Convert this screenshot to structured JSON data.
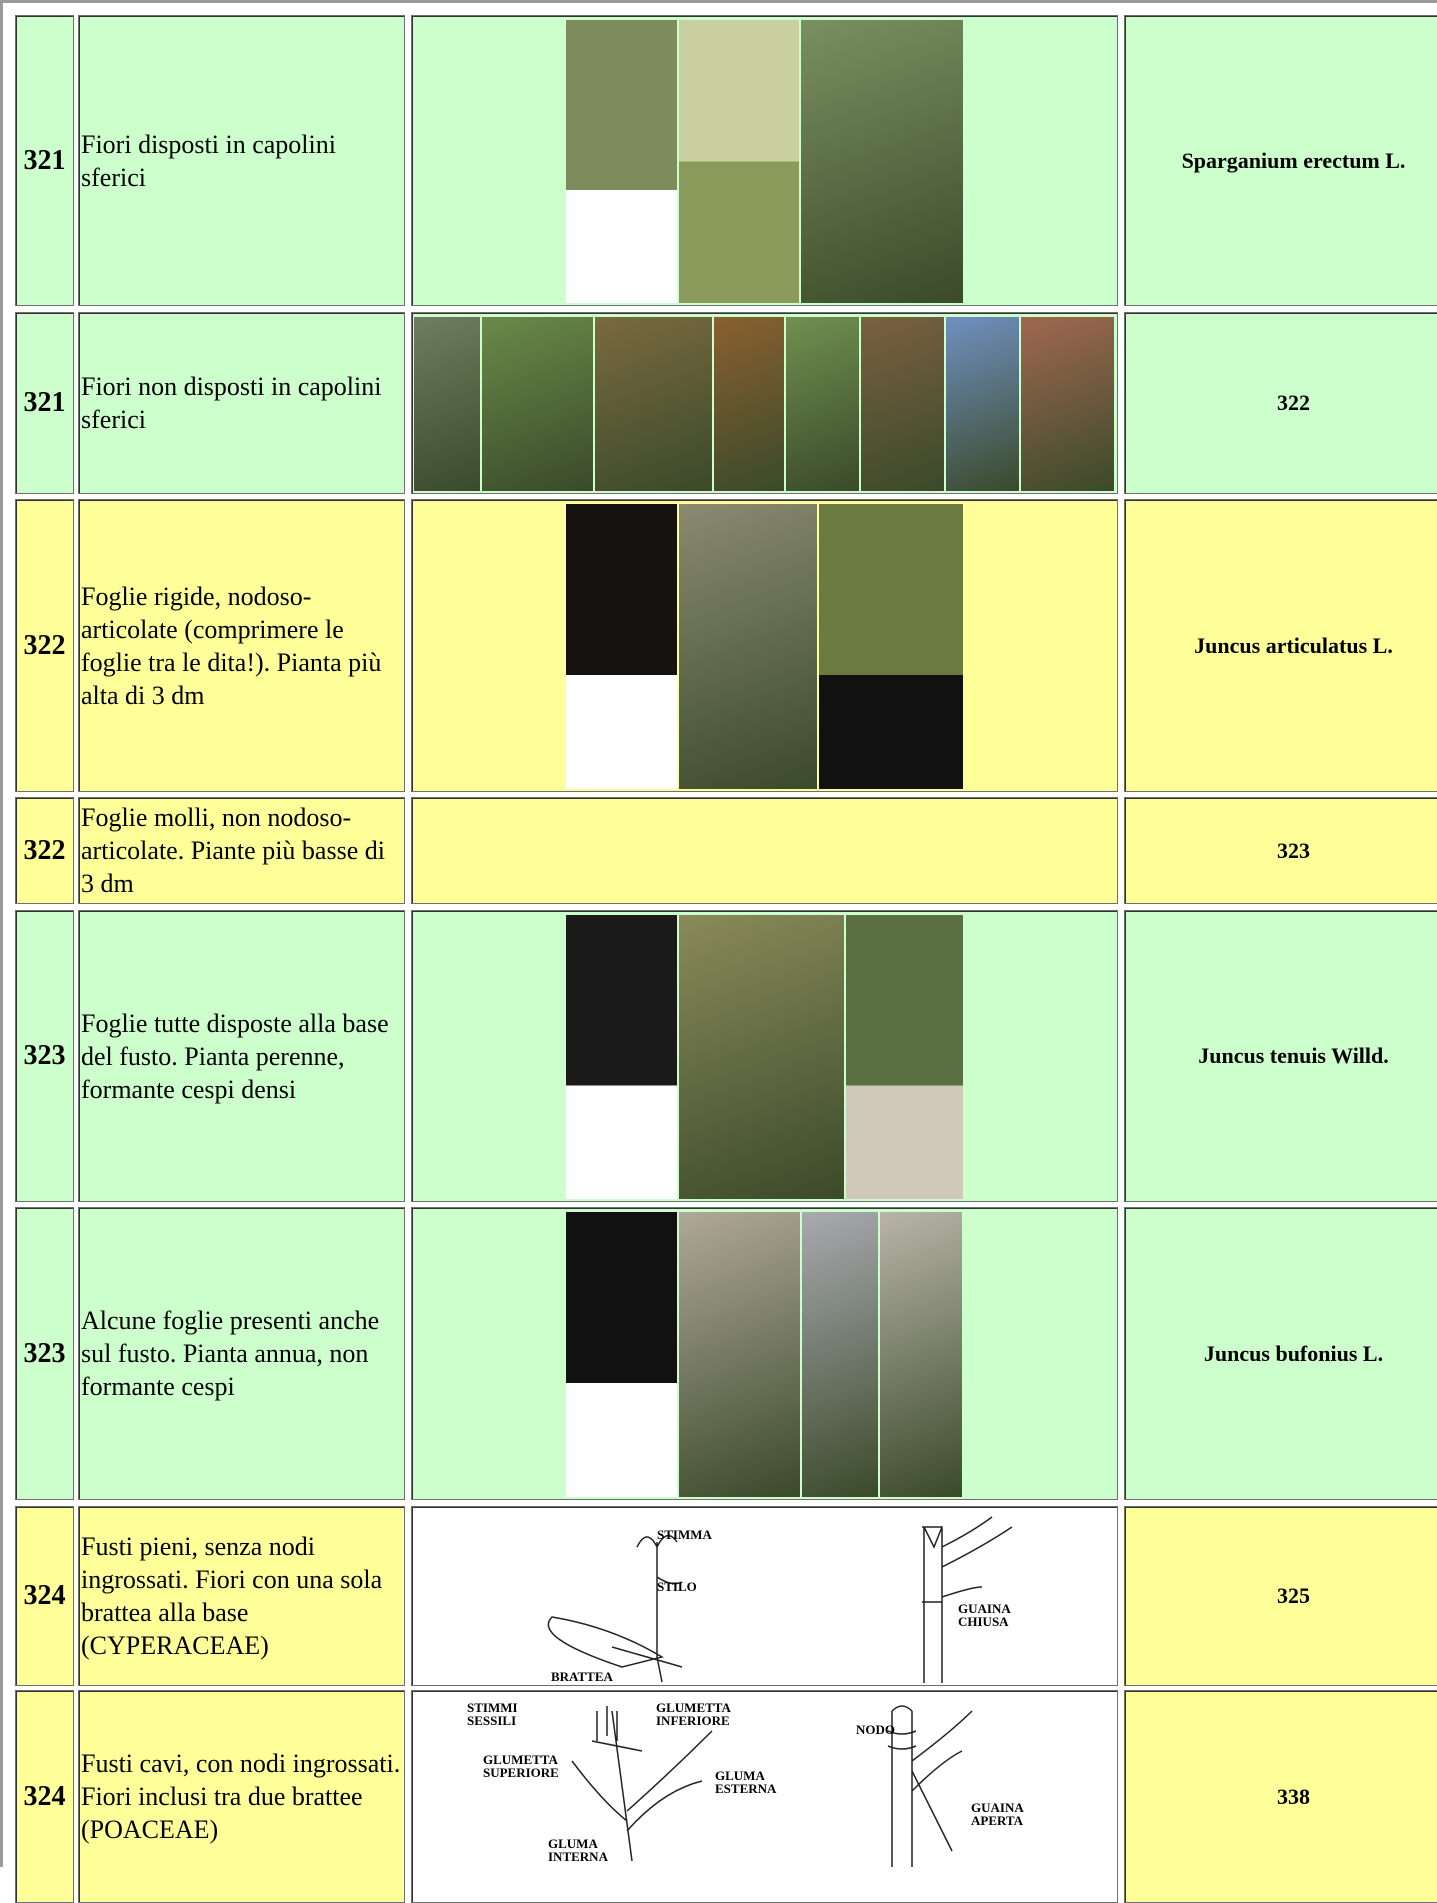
{
  "rows": [
    {
      "couplet": "321",
      "text": "Fiori disposti in capolini sferici",
      "result": "Sparganium erectum L."
    },
    {
      "couplet": "321",
      "text": "Fiori non disposti in capolini sferici",
      "result": "322"
    },
    {
      "couplet": "322",
      "text": "Foglie rigide, nodoso-articolate (comprimere le foglie tra le dita!). Pianta più alta di 3 dm",
      "result": "Juncus articulatus L."
    },
    {
      "couplet": "322",
      "text": "Foglie molli, non nodoso-articolate. Piante più basse di 3 dm",
      "result": "323"
    },
    {
      "couplet": "323",
      "text": "Foglie tutte disposte alla base del fusto. Pianta perenne, formante cespi densi",
      "result": "Juncus tenuis Willd."
    },
    {
      "couplet": "323",
      "text": "Alcune foglie presenti anche sul fusto. Pianta annua, non formante cespi",
      "result": "Juncus bufonius L."
    },
    {
      "couplet": "324",
      "text": "Fusti pieni, senza nodi ingrossati. Fiori con una sola brattea alla base (CYPERACEAE)",
      "result": "325",
      "labels": [
        "STIMMA",
        "STILO",
        "BRATTEA",
        "GUAINA CHIUSA"
      ]
    },
    {
      "couplet": "324",
      "text": "Fusti cavi, con nodi ingrossati. Fiori inclusi tra due brattee (POACEAE)",
      "result": "338",
      "labels": [
        "STIMMI SESSILI",
        "GLUMETTA INFERIORE",
        "GLUMETTA SUPERIORE",
        "GLUMA ESTERNA",
        "GLUMA INTERNA",
        "NODO",
        "GUAINA APERTA"
      ]
    }
  ]
}
